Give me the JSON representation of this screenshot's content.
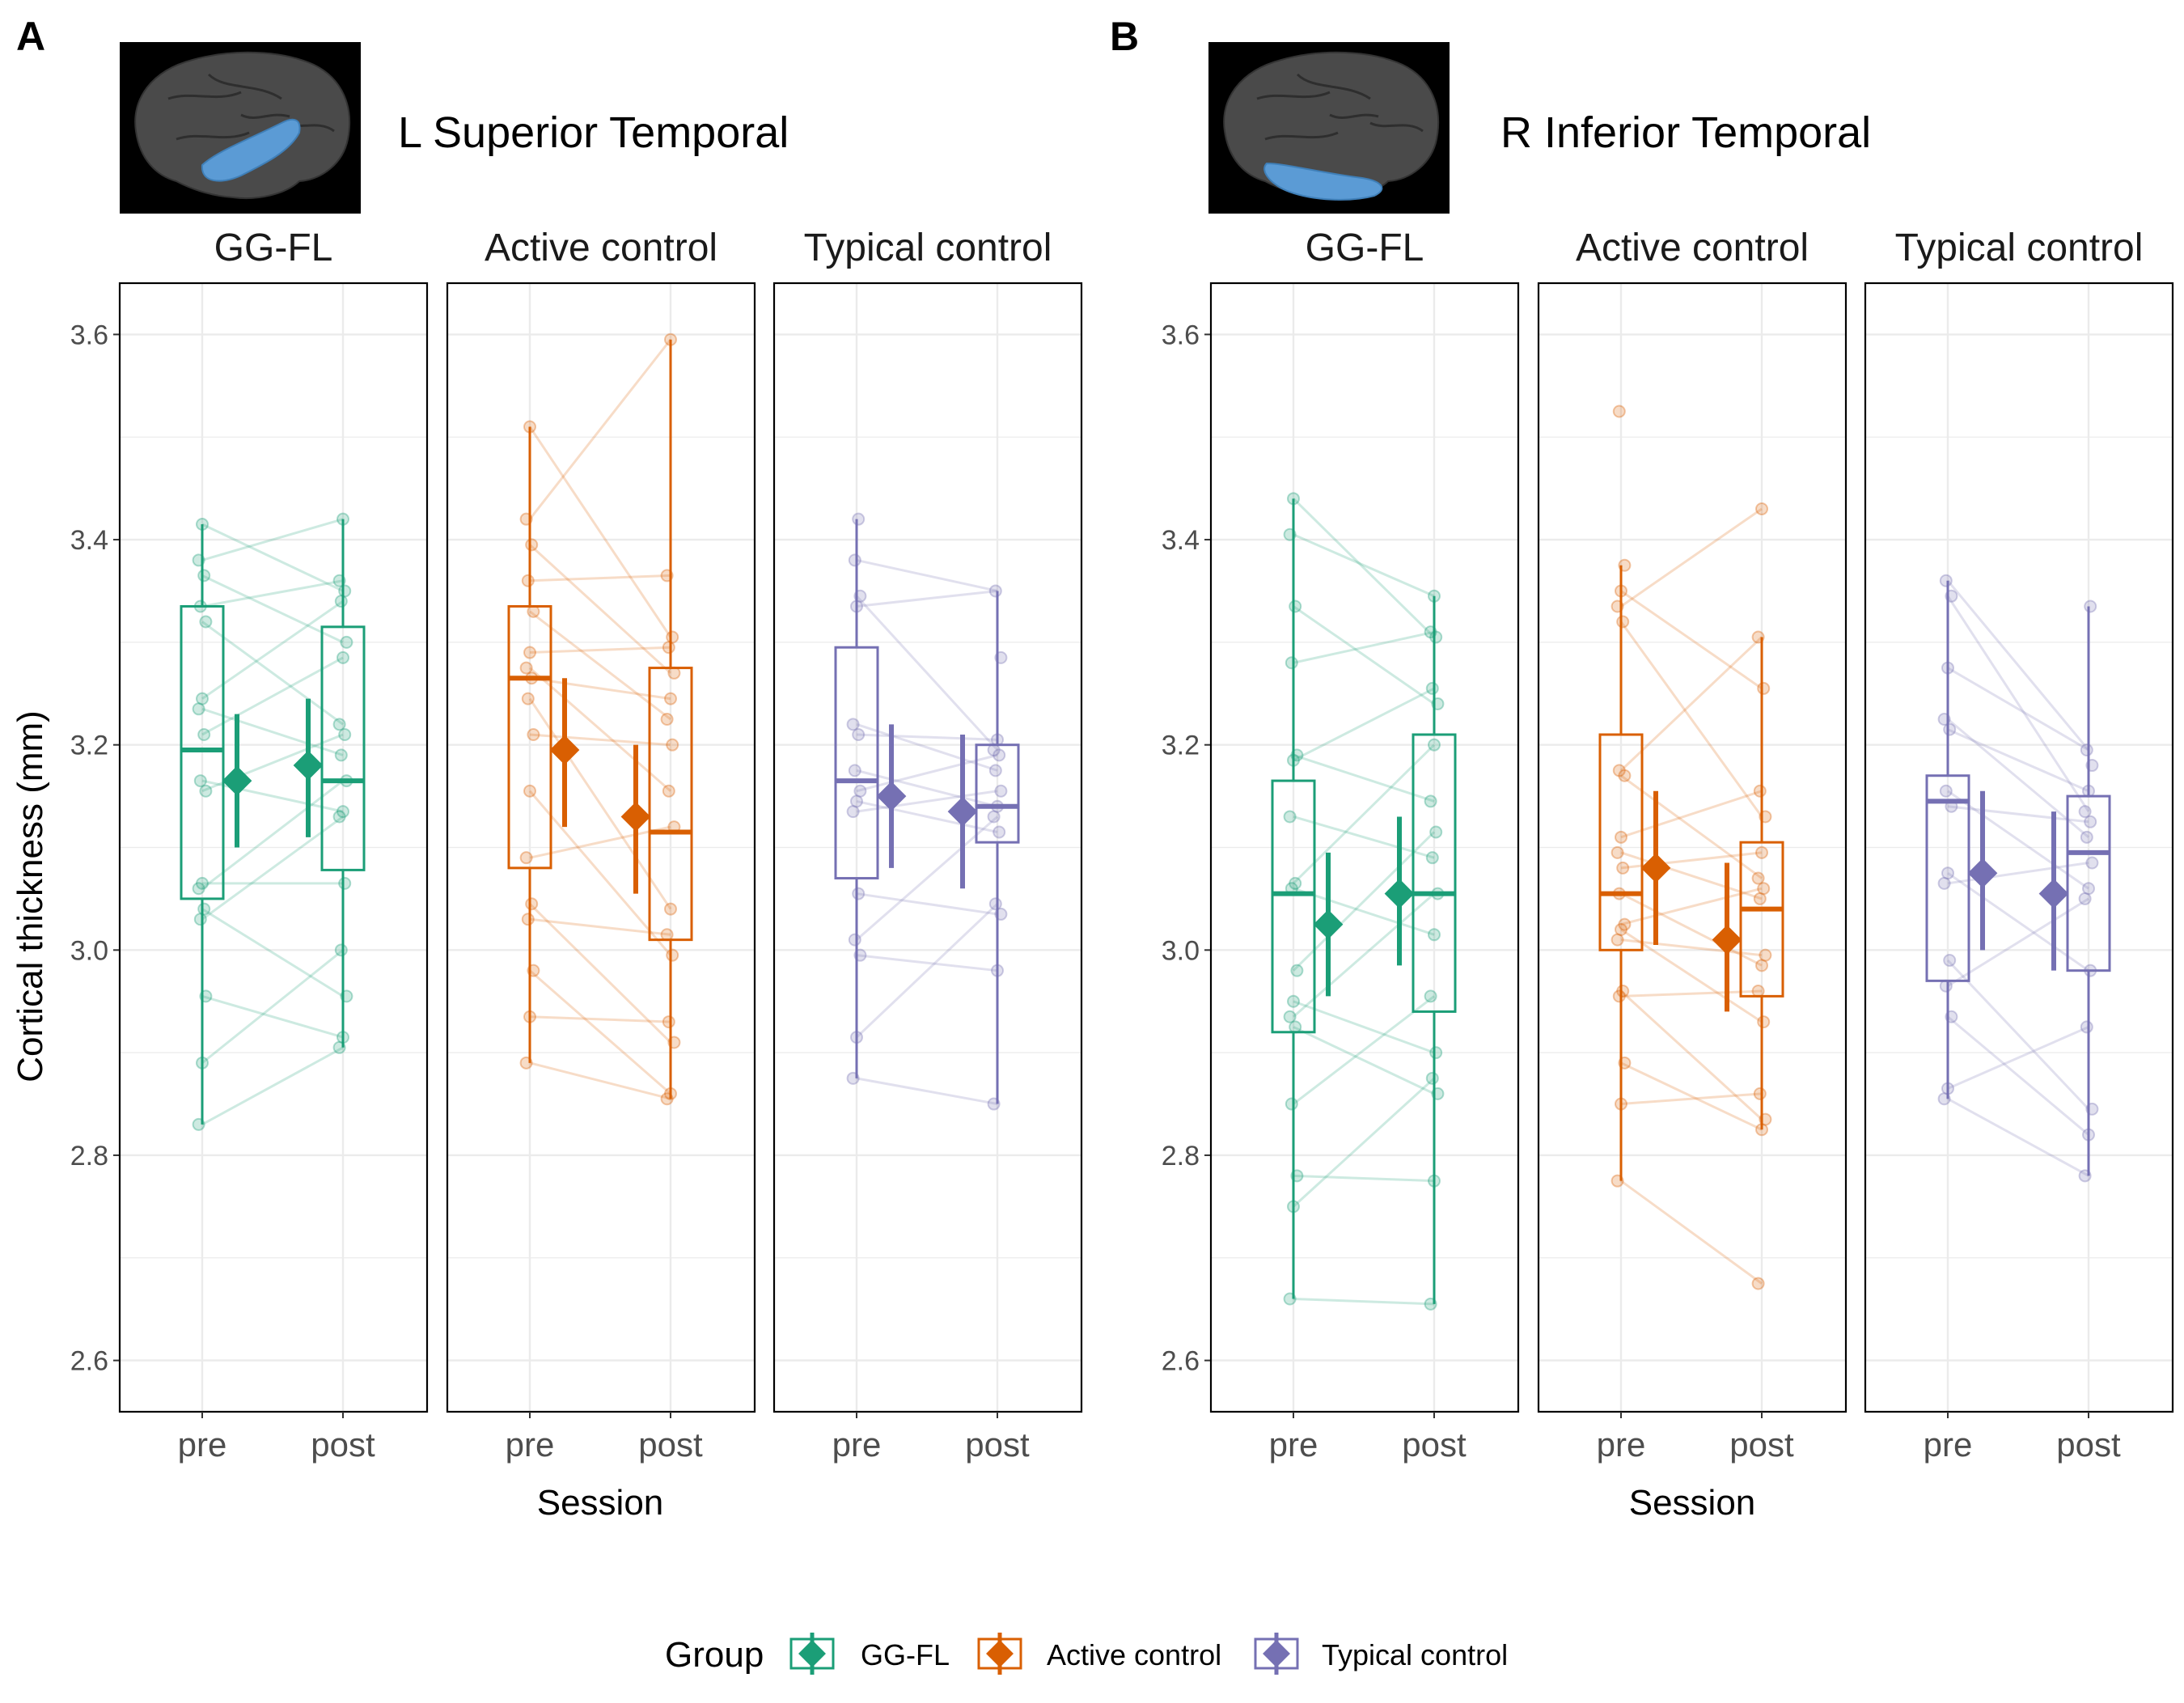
{
  "figure": {
    "panels": [
      {
        "letter": "A",
        "region": "L Superior Temporal",
        "brain_highlight": "superior-temporal"
      },
      {
        "letter": "B",
        "region": "R Inferior Temporal",
        "brain_highlight": "inferior-temporal"
      }
    ],
    "y_axis_label": "Cortical thickness (mm)",
    "x_axis_label": "Session"
  },
  "legend": {
    "title": "Group",
    "items": [
      {
        "label": "GG-FL",
        "color": "#1b9e77"
      },
      {
        "label": "Active control",
        "color": "#d95f02"
      },
      {
        "label": "Typical control",
        "color": "#7570b3"
      }
    ]
  },
  "chart_data": [
    {
      "type": "box",
      "panel": "A",
      "ylabel": "Cortical thickness (mm)",
      "xlabel": "Session",
      "ylim": [
        2.55,
        3.65
      ],
      "yticks": [
        2.6,
        2.8,
        3.0,
        3.2,
        3.4,
        3.6
      ],
      "sessions": [
        "pre",
        "post"
      ],
      "facets": [
        {
          "group": "GG-FL",
          "color": "#1b9e77",
          "box": {
            "pre": {
              "min": 2.83,
              "q1": 3.05,
              "median": 3.195,
              "q3": 3.335,
              "max": 3.415
            },
            "post": {
              "min": 2.905,
              "q1": 3.078,
              "median": 3.165,
              "q3": 3.315,
              "max": 3.42
            }
          },
          "mean": {
            "pre": {
              "mean": 3.165,
              "low": 3.1,
              "high": 3.23
            },
            "post": {
              "mean": 3.18,
              "low": 3.11,
              "high": 3.245
            }
          },
          "pre_points": [
            2.83,
            2.89,
            2.955,
            3.03,
            3.04,
            3.06,
            3.065,
            3.155,
            3.165,
            3.21,
            3.235,
            3.245,
            3.32,
            3.335,
            3.365,
            3.38,
            3.415
          ],
          "post_points": [
            2.905,
            2.915,
            2.955,
            3.0,
            3.065,
            3.13,
            3.135,
            3.165,
            3.19,
            3.21,
            3.22,
            3.285,
            3.3,
            3.34,
            3.35,
            3.36,
            3.42
          ]
        },
        {
          "group": "Active control",
          "color": "#d95f02",
          "box": {
            "pre": {
              "min": 2.89,
              "q1": 3.08,
              "median": 3.265,
              "q3": 3.335,
              "max": 3.51
            },
            "post": {
              "min": 2.855,
              "q1": 3.01,
              "median": 3.115,
              "q3": 3.275,
              "max": 3.595
            }
          },
          "mean": {
            "pre": {
              "mean": 3.195,
              "low": 3.12,
              "high": 3.265
            },
            "post": {
              "mean": 3.13,
              "low": 3.055,
              "high": 3.2
            }
          },
          "pre_points": [
            2.89,
            2.935,
            2.98,
            3.03,
            3.045,
            3.09,
            3.155,
            3.21,
            3.245,
            3.265,
            3.275,
            3.29,
            3.33,
            3.36,
            3.395,
            3.42,
            3.51
          ],
          "post_points": [
            2.855,
            2.86,
            2.91,
            2.93,
            2.995,
            3.015,
            3.04,
            3.12,
            3.155,
            3.2,
            3.225,
            3.245,
            3.27,
            3.295,
            3.305,
            3.365,
            3.595
          ]
        },
        {
          "group": "Typical control",
          "color": "#7570b3",
          "box": {
            "pre": {
              "min": 2.875,
              "q1": 3.07,
              "median": 3.165,
              "q3": 3.295,
              "max": 3.42
            },
            "post": {
              "min": 2.85,
              "q1": 3.105,
              "median": 3.14,
              "q3": 3.2,
              "max": 3.35
            }
          },
          "mean": {
            "pre": {
              "mean": 3.15,
              "low": 3.08,
              "high": 3.22
            },
            "post": {
              "mean": 3.135,
              "low": 3.06,
              "high": 3.21
            }
          },
          "pre_points": [
            2.875,
            2.915,
            2.995,
            3.01,
            3.055,
            3.135,
            3.145,
            3.155,
            3.175,
            3.21,
            3.22,
            3.335,
            3.345,
            3.38,
            3.42
          ],
          "post_points": [
            2.85,
            2.98,
            3.035,
            3.045,
            3.115,
            3.13,
            3.14,
            3.155,
            3.175,
            3.19,
            3.195,
            3.205,
            3.285,
            3.35
          ]
        }
      ]
    },
    {
      "type": "box",
      "panel": "B",
      "ylabel": "Cortical thickness (mm)",
      "xlabel": "Session",
      "ylim": [
        2.55,
        3.65
      ],
      "yticks": [
        2.6,
        2.8,
        3.0,
        3.2,
        3.4,
        3.6
      ],
      "sessions": [
        "pre",
        "post"
      ],
      "facets": [
        {
          "group": "GG-FL",
          "color": "#1b9e77",
          "box": {
            "pre": {
              "min": 2.66,
              "q1": 2.92,
              "median": 3.055,
              "q3": 3.165,
              "max": 3.44
            },
            "post": {
              "min": 2.655,
              "q1": 2.94,
              "median": 3.055,
              "q3": 3.21,
              "max": 3.345
            }
          },
          "mean": {
            "pre": {
              "mean": 3.025,
              "low": 2.955,
              "high": 3.095
            },
            "post": {
              "mean": 3.055,
              "low": 2.985,
              "high": 3.13
            }
          },
          "pre_points": [
            2.66,
            2.75,
            2.78,
            2.85,
            2.925,
            2.935,
            2.95,
            2.98,
            3.06,
            3.065,
            3.13,
            3.185,
            3.19,
            3.28,
            3.335,
            3.405,
            3.44
          ],
          "post_points": [
            2.655,
            2.775,
            2.86,
            2.875,
            2.9,
            2.955,
            3.015,
            3.055,
            3.09,
            3.115,
            3.145,
            3.2,
            3.24,
            3.255,
            3.305,
            3.31,
            3.345
          ]
        },
        {
          "group": "Active control",
          "color": "#d95f02",
          "box": {
            "pre": {
              "min": 2.775,
              "q1": 3.0,
              "median": 3.055,
              "q3": 3.21,
              "max": 3.375
            },
            "post": {
              "min": 2.825,
              "q1": 2.955,
              "median": 3.04,
              "q3": 3.105,
              "max": 3.305
            }
          },
          "mean": {
            "pre": {
              "mean": 3.08,
              "low": 3.005,
              "high": 3.155
            },
            "post": {
              "mean": 3.01,
              "low": 2.94,
              "high": 3.085
            }
          },
          "pre_points": [
            2.775,
            2.85,
            2.89,
            2.955,
            2.96,
            3.01,
            3.02,
            3.025,
            3.055,
            3.08,
            3.095,
            3.11,
            3.17,
            3.175,
            3.32,
            3.335,
            3.35,
            3.375,
            3.525
          ],
          "post_points": [
            2.675,
            2.825,
            2.835,
            2.86,
            2.93,
            2.96,
            2.985,
            2.995,
            3.05,
            3.06,
            3.07,
            3.095,
            3.13,
            3.155,
            3.255,
            3.305,
            3.43
          ]
        },
        {
          "group": "Typical control",
          "color": "#7570b3",
          "box": {
            "pre": {
              "min": 2.855,
              "q1": 2.97,
              "median": 3.145,
              "q3": 3.17,
              "max": 3.36
            },
            "post": {
              "min": 2.78,
              "q1": 2.98,
              "median": 3.095,
              "q3": 3.15,
              "max": 3.335
            }
          },
          "mean": {
            "pre": {
              "mean": 3.075,
              "low": 3.0,
              "high": 3.155
            },
            "post": {
              "mean": 3.055,
              "low": 2.98,
              "high": 3.135
            }
          },
          "pre_points": [
            2.855,
            2.865,
            2.935,
            2.965,
            2.99,
            3.065,
            3.075,
            3.14,
            3.155,
            3.215,
            3.225,
            3.275,
            3.345,
            3.36
          ],
          "post_points": [
            2.78,
            2.82,
            2.845,
            2.925,
            2.98,
            3.05,
            3.06,
            3.085,
            3.11,
            3.125,
            3.135,
            3.155,
            3.18,
            3.195,
            3.335
          ]
        }
      ]
    }
  ]
}
